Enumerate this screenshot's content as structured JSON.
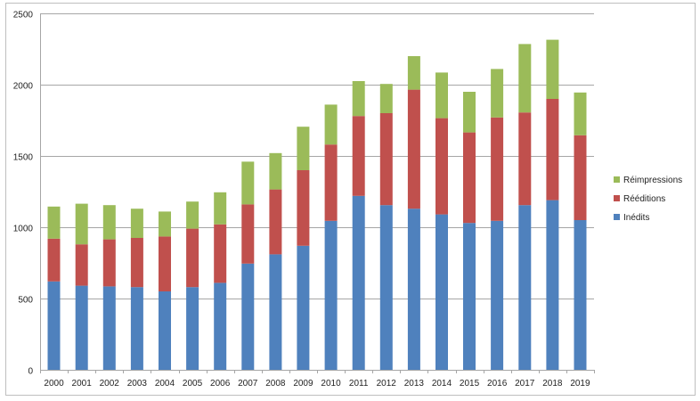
{
  "chart_data": {
    "type": "bar",
    "stacked": true,
    "title": "",
    "xlabel": "",
    "ylabel": "",
    "ylim": [
      0,
      2500
    ],
    "yticks": [
      "0",
      "500",
      "1000",
      "1500",
      "2000",
      "2500"
    ],
    "grid": true,
    "legend_position": "right",
    "categories": [
      "2000",
      "2001",
      "2002",
      "2003",
      "2004",
      "2005",
      "2006",
      "2007",
      "2008",
      "2009",
      "2010",
      "2011",
      "2012",
      "2013",
      "2014",
      "2015",
      "2016",
      "2017",
      "2018",
      "2019"
    ],
    "series": [
      {
        "name": "Inédits",
        "color": "#4f81bd",
        "values": [
          620,
          590,
          585,
          580,
          550,
          580,
          610,
          745,
          810,
          870,
          1045,
          1220,
          1155,
          1130,
          1090,
          1030,
          1045,
          1155,
          1190,
          1050
        ]
      },
      {
        "name": "Rééditions",
        "color": "#c0504d",
        "values": [
          300,
          290,
          330,
          345,
          385,
          410,
          410,
          415,
          455,
          530,
          535,
          560,
          645,
          835,
          675,
          635,
          725,
          650,
          710,
          595
        ]
      },
      {
        "name": "Réimpressions",
        "color": "#9bbb59",
        "values": [
          225,
          285,
          240,
          205,
          175,
          190,
          225,
          300,
          255,
          305,
          280,
          245,
          205,
          235,
          320,
          285,
          340,
          480,
          415,
          300
        ]
      }
    ],
    "legend_order": [
      "Réimpressions",
      "Rééditions",
      "Inédits"
    ]
  }
}
